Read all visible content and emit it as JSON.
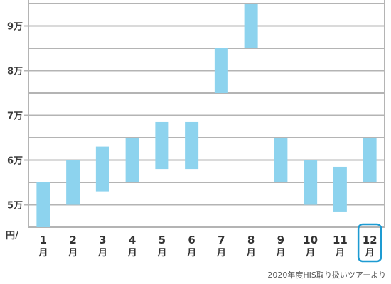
{
  "chart_data": {
    "type": "range-bar",
    "y_unit_label": "円/",
    "ytick_labels": [
      "5万",
      "6万",
      "7万",
      "8万",
      "9万"
    ],
    "ytick_values": [
      50000,
      60000,
      70000,
      80000,
      90000
    ],
    "ylim": [
      45000,
      95000
    ],
    "grid": true,
    "categories": [
      {
        "num": "1",
        "unit": "月"
      },
      {
        "num": "2",
        "unit": "月"
      },
      {
        "num": "3",
        "unit": "月"
      },
      {
        "num": "4",
        "unit": "月"
      },
      {
        "num": "5",
        "unit": "月"
      },
      {
        "num": "6",
        "unit": "月"
      },
      {
        "num": "7",
        "unit": "月"
      },
      {
        "num": "8",
        "unit": "月"
      },
      {
        "num": "9",
        "unit": "月"
      },
      {
        "num": "10",
        "unit": "月"
      },
      {
        "num": "11",
        "unit": "月"
      },
      {
        "num": "12",
        "unit": "月"
      }
    ],
    "ranges": [
      [
        45000,
        55000
      ],
      [
        50000,
        60000
      ],
      [
        53000,
        63000
      ],
      [
        55000,
        65000
      ],
      [
        58000,
        68500
      ],
      [
        58000,
        68500
      ],
      [
        75000,
        85000
      ],
      [
        85000,
        95000
      ],
      [
        55000,
        65000
      ],
      [
        50000,
        60000
      ],
      [
        48500,
        58500
      ],
      [
        55000,
        65000
      ]
    ],
    "highlighted_category": "12",
    "colors": {
      "bar": "#8dd3ee",
      "grid": "#b4b4b4",
      "highlight": "#1e9bd2"
    }
  },
  "source_note": "2020年度HIS取り扱いツアーより"
}
